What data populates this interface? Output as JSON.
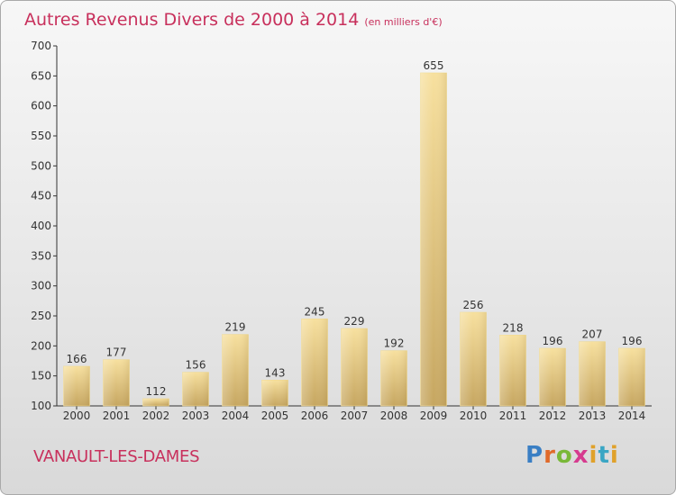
{
  "header": {
    "title": "Autres Revenus Divers de 2000 à 2014",
    "subtitle": "(en milliers d'€)"
  },
  "footer": {
    "place_name": "VANAULT-LES-DAMES",
    "logo_text": "Proxiti"
  },
  "colors": {
    "title": "#c8305c",
    "bar_light": "#f5dc95",
    "bar_dark": "#c8a862",
    "axis": "#333333"
  },
  "chart_data": {
    "type": "bar",
    "title": "Autres Revenus Divers de 2000 à 2014",
    "subtitle": "(en milliers d'€)",
    "xlabel": "",
    "ylabel": "",
    "categories": [
      "2000",
      "2001",
      "2002",
      "2003",
      "2004",
      "2005",
      "2006",
      "2007",
      "2008",
      "2009",
      "2010",
      "2011",
      "2012",
      "2013",
      "2014"
    ],
    "values": [
      166,
      177,
      112,
      156,
      219,
      143,
      245,
      229,
      192,
      655,
      256,
      218,
      196,
      207,
      196
    ],
    "ylim": [
      100,
      700
    ],
    "yticks": [
      100,
      150,
      200,
      250,
      300,
      350,
      400,
      450,
      500,
      550,
      600,
      650,
      700
    ],
    "grid": false,
    "data_labels": true
  }
}
